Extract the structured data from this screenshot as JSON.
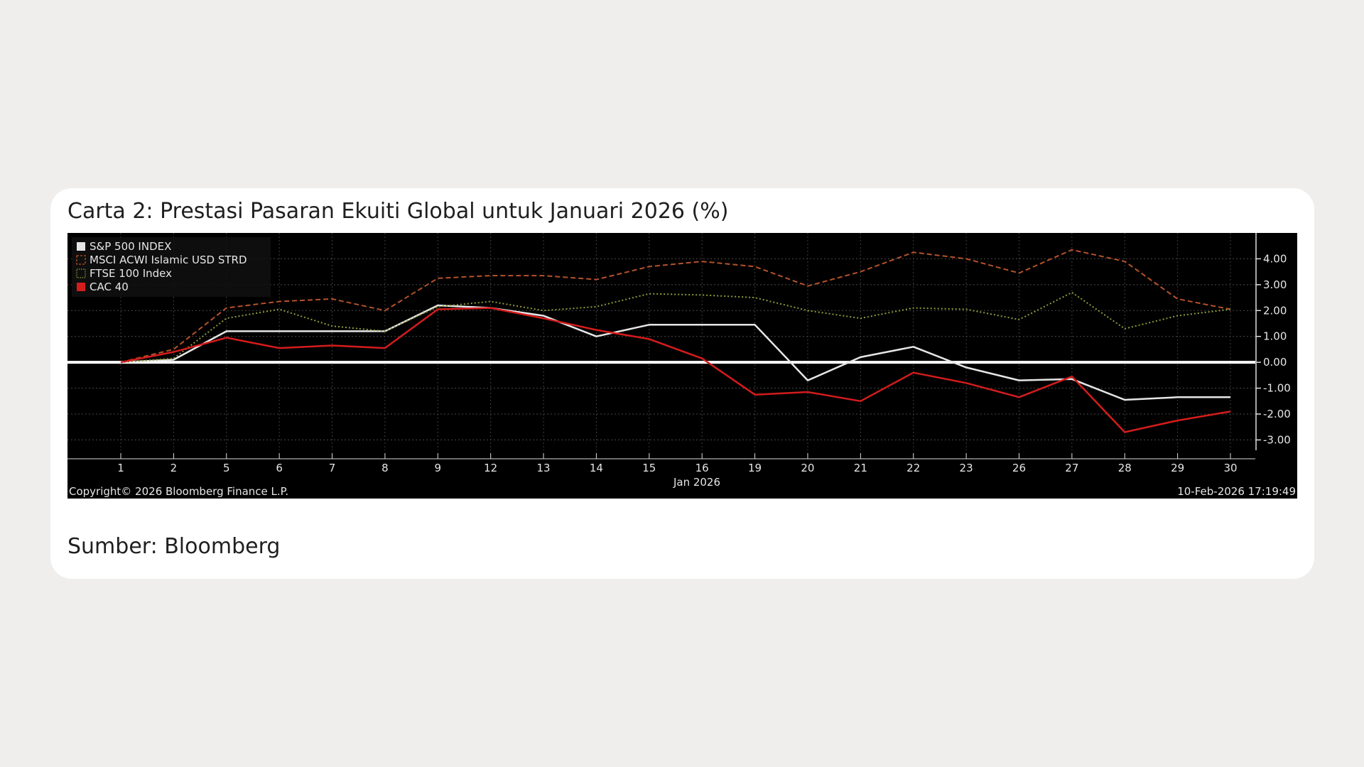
{
  "caption": "Carta 2: Prestasi Pasaran Ekuiti Global untuk Januari 2026 (%)",
  "source": "Sumber: Bloomberg",
  "chart_data": {
    "type": "line",
    "title": "",
    "xlabel": "Jan 2026",
    "ylabel": "",
    "x": [
      "1",
      "2",
      "5",
      "6",
      "7",
      "8",
      "9",
      "12",
      "13",
      "14",
      "15",
      "16",
      "19",
      "20",
      "21",
      "22",
      "23",
      "26",
      "27",
      "28",
      "29",
      "30"
    ],
    "ylim": [
      -3.4,
      5.0
    ],
    "yticks": [
      4.0,
      3.0,
      2.0,
      1.0,
      0.0,
      -1.0,
      -2.0,
      -3.0
    ],
    "ytick_labels": [
      "4.00",
      "3.00",
      "2.00",
      "1.00",
      "0.00",
      "-1.00",
      "-2.00",
      "-3.00"
    ],
    "grid": true,
    "legend_position": "top-left",
    "background_color": "#000000",
    "zero_line_color": "#ffffff",
    "series": [
      {
        "name": "S&P 500 INDEX",
        "color": "#e6e6e6",
        "style": "solid",
        "values": [
          0.0,
          0.1,
          1.2,
          1.2,
          1.2,
          1.2,
          2.2,
          2.1,
          1.8,
          1.0,
          1.45,
          1.45,
          1.45,
          -0.7,
          0.2,
          0.6,
          -0.2,
          -0.7,
          -0.65,
          -1.45,
          -1.35,
          -1.35
        ]
      },
      {
        "name": "MSCI ACWI Islamic USD STRD",
        "color": "#b5522a",
        "style": "dashed",
        "values": [
          0.0,
          0.5,
          2.1,
          2.35,
          2.45,
          2.0,
          3.25,
          3.35,
          3.35,
          3.2,
          3.7,
          3.9,
          3.7,
          2.95,
          3.5,
          4.25,
          4.0,
          3.45,
          4.35,
          3.9,
          2.45,
          2.05
        ]
      },
      {
        "name": "FTSE 100 Index",
        "color": "#8e9a3a",
        "style": "dotted",
        "values": [
          0.0,
          0.15,
          1.7,
          2.05,
          1.4,
          1.2,
          2.15,
          2.35,
          2.0,
          2.15,
          2.65,
          2.6,
          2.5,
          2.0,
          1.7,
          2.1,
          2.05,
          1.65,
          2.7,
          1.3,
          1.8,
          2.05
        ]
      },
      {
        "name": "CAC 40",
        "color": "#d41c1c",
        "style": "solid",
        "values": [
          0.0,
          0.4,
          0.95,
          0.55,
          0.65,
          0.55,
          2.05,
          2.1,
          1.7,
          1.25,
          0.9,
          0.15,
          -1.25,
          -1.15,
          -1.5,
          -0.4,
          -0.8,
          -1.35,
          -0.55,
          -2.7,
          -2.25,
          -1.9
        ]
      }
    ]
  },
  "footer": {
    "copyright": "Copyright© 2026 Bloomberg Finance L.P.",
    "timestamp": "10-Feb-2026 17:19:49"
  }
}
